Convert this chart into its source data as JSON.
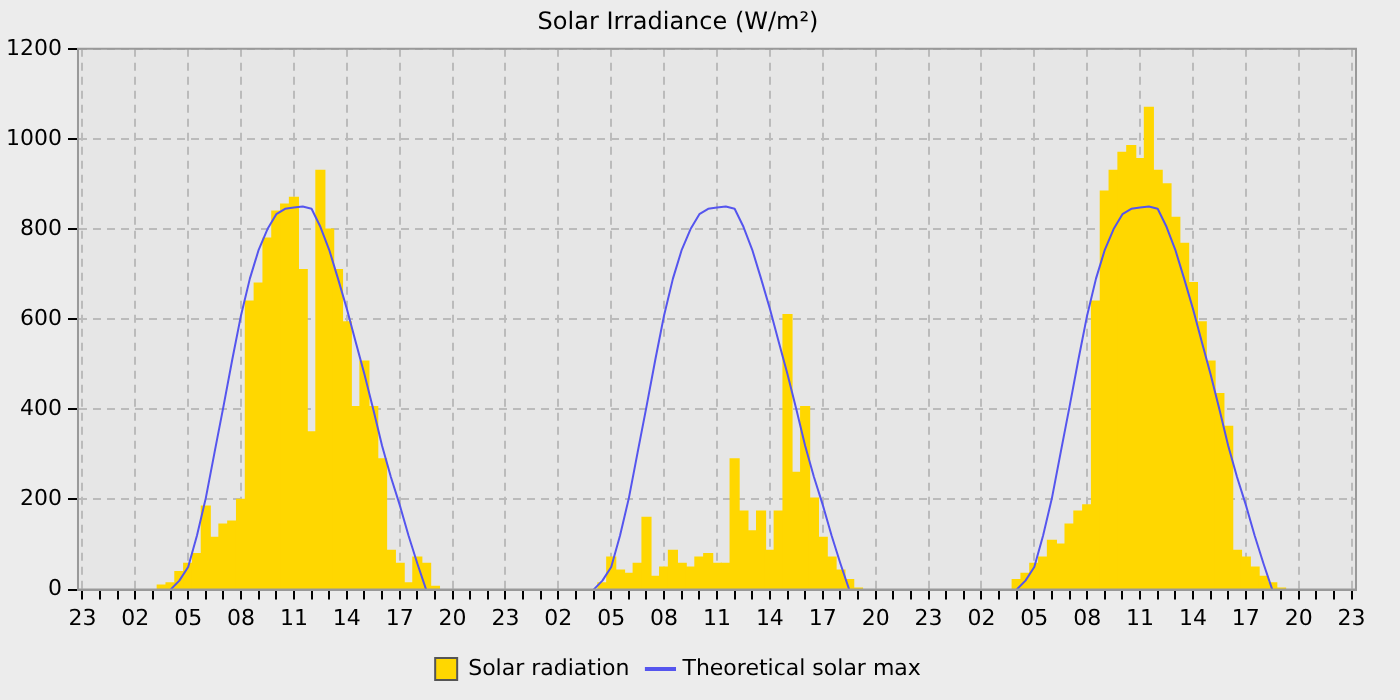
{
  "chart_data": {
    "type": "bar",
    "title": "Solar Irradiance (W/m²)",
    "categories": [
      "23",
      null,
      null,
      null,
      null,
      null,
      "02",
      null,
      null,
      null,
      null,
      null,
      "05",
      null,
      null,
      null,
      null,
      null,
      "08",
      null,
      null,
      null,
      null,
      null,
      "11",
      null,
      null,
      null,
      null,
      null,
      "14",
      null,
      null,
      null,
      null,
      null,
      "17",
      null,
      null,
      null,
      null,
      null,
      "20",
      null,
      null,
      null,
      null,
      null,
      "23",
      null,
      null,
      null,
      null,
      null,
      "02",
      null,
      null,
      null,
      null,
      null,
      "05",
      null,
      null,
      null,
      null,
      null,
      "08",
      null,
      null,
      null,
      null,
      null,
      "11",
      null,
      null,
      null,
      null,
      null,
      "14",
      null,
      null,
      null,
      null,
      null,
      "17",
      null,
      null,
      null,
      null,
      null,
      "20",
      null,
      null,
      null,
      null,
      null,
      "23",
      null,
      null,
      null,
      null,
      null,
      "02",
      null,
      null,
      null,
      null,
      null,
      "05",
      null,
      null,
      null,
      null,
      null,
      "08",
      null,
      null,
      null,
      null,
      null,
      "11",
      null,
      null,
      null,
      null,
      null,
      "14",
      null,
      null,
      null,
      null,
      null,
      "17",
      null,
      null,
      null,
      null,
      null,
      "20",
      null,
      null,
      null,
      null,
      null,
      "23"
    ],
    "ylim": [
      0,
      1200
    ],
    "yticks": [
      0,
      200,
      400,
      600,
      800,
      1000,
      1200
    ],
    "grid": true,
    "legend": "bottom",
    "series": [
      {
        "name": "Solar radiation",
        "color": "#ffd700",
        "values": [
          0,
          0,
          0,
          0,
          0,
          0,
          0,
          0,
          0,
          10,
          15,
          40,
          58,
          80,
          185,
          116,
          145,
          152,
          200,
          640,
          680,
          780,
          840,
          855,
          870,
          710,
          350,
          930,
          800,
          710,
          594,
          406,
          507,
          406,
          290,
          87,
          58,
          15,
          72,
          58,
          7,
          0,
          0,
          0,
          0,
          0,
          0,
          0,
          0,
          0,
          0,
          0,
          0,
          0,
          0,
          0,
          0,
          0,
          0,
          15,
          72,
          43,
          36,
          58,
          160,
          29,
          50,
          87,
          58,
          50,
          72,
          80,
          58,
          58,
          290,
          174,
          130,
          174,
          87,
          174,
          610,
          260,
          406,
          203,
          116,
          72,
          43,
          22,
          3,
          0,
          0,
          0,
          0,
          0,
          0,
          0,
          0,
          0,
          0,
          0,
          0,
          0,
          0,
          0,
          0,
          0,
          22,
          36,
          58,
          72,
          109,
          101,
          145,
          174,
          188,
          640,
          884,
          930,
          970,
          985,
          956,
          1070,
          930,
          900,
          826,
          768,
          681,
          594,
          507,
          435,
          362,
          87,
          72,
          50,
          29,
          15,
          3,
          0,
          0,
          0,
          0,
          0,
          0,
          0,
          0
        ]
      },
      {
        "name": "Theoretical solar max",
        "type": "line",
        "color": "#5555ee",
        "values": [
          null,
          null,
          null,
          null,
          null,
          null,
          null,
          null,
          null,
          null,
          0,
          20,
          50,
          120,
          203,
          305,
          406,
          510,
          609,
          690,
          754,
          800,
          833,
          845,
          848,
          850,
          845,
          805,
          754,
          690,
          623,
          550,
          478,
          400,
          319,
          250,
          188,
          120,
          58,
          0,
          null,
          null,
          null,
          null,
          null,
          null,
          null,
          null,
          null,
          null,
          null,
          null,
          null,
          null,
          null,
          null,
          null,
          null,
          0,
          20,
          50,
          120,
          203,
          305,
          406,
          510,
          609,
          690,
          754,
          800,
          833,
          845,
          848,
          850,
          845,
          805,
          754,
          690,
          623,
          550,
          478,
          400,
          319,
          250,
          188,
          120,
          58,
          0,
          null,
          null,
          null,
          null,
          null,
          null,
          null,
          null,
          null,
          null,
          null,
          null,
          null,
          null,
          null,
          null,
          null,
          null,
          0,
          20,
          50,
          120,
          203,
          305,
          406,
          510,
          609,
          690,
          754,
          800,
          833,
          845,
          848,
          850,
          845,
          805,
          754,
          690,
          623,
          550,
          478,
          400,
          319,
          250,
          188,
          120,
          58,
          0,
          null,
          null,
          null,
          null,
          null,
          null,
          null,
          null,
          null
        ]
      }
    ]
  }
}
